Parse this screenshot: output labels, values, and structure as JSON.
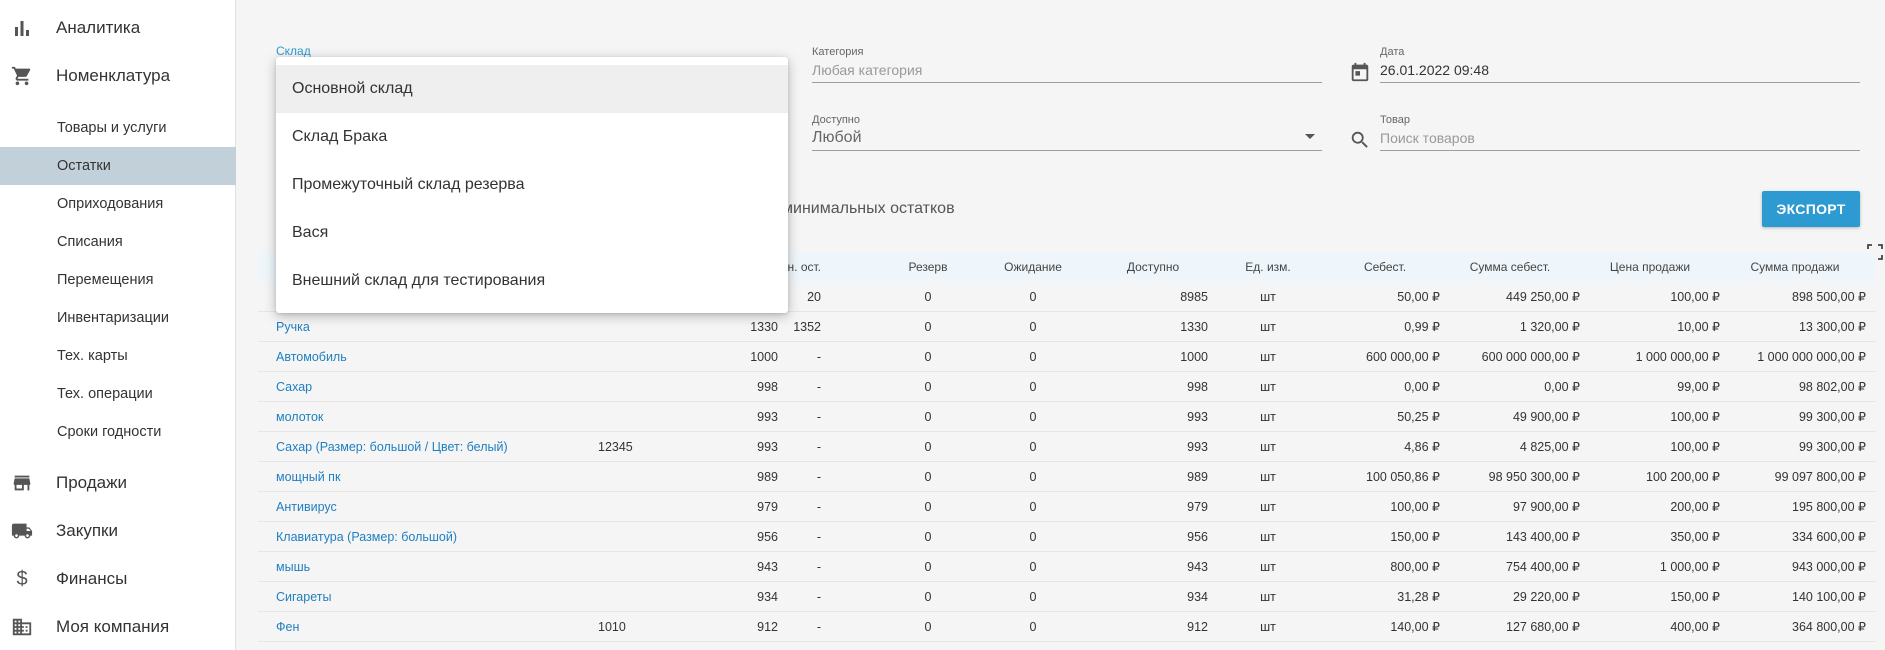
{
  "sidebar": {
    "sections": [
      {
        "label": "Аналитика",
        "icon": "bar-chart-icon"
      },
      {
        "label": "Номенклатура",
        "icon": "cart-icon"
      }
    ],
    "sub_items": [
      {
        "label": "Товары и услуги"
      },
      {
        "label": "Остатки",
        "active": true
      },
      {
        "label": "Оприходования"
      },
      {
        "label": "Списания"
      },
      {
        "label": "Перемещения"
      },
      {
        "label": "Инвентаризации"
      },
      {
        "label": "Тех. карты"
      },
      {
        "label": "Тех. операции"
      },
      {
        "label": "Сроки годности"
      }
    ],
    "bottom_sections": [
      {
        "label": "Продажи",
        "icon": "store-icon"
      },
      {
        "label": "Закупки",
        "icon": "truck-icon"
      },
      {
        "label": "Финансы",
        "icon": "dollar-icon"
      },
      {
        "label": "Моя компания",
        "icon": "building-icon"
      }
    ]
  },
  "filters": {
    "warehouse_label": "Склад",
    "category_label": "Категория",
    "category_placeholder": "Любая категория",
    "date_label": "Дата",
    "date_value": "26.01.2022 09:48",
    "available_label": "Доступно",
    "available_value": "Любой",
    "product_label": "Товар",
    "product_placeholder": "Поиск товаров"
  },
  "dropdown": {
    "options": [
      "Основной склад",
      "Склад Брака",
      "Промежуточный склад резерва",
      "Вася",
      "Внешний склад для тестирования"
    ]
  },
  "tabs": {
    "min_stock_text": "минимальных остатков"
  },
  "toolbar": {
    "export_label": "ЭКСПОРТ"
  },
  "table": {
    "headers": {
      "min": "Мин. ост.",
      "reserve": "Резерв",
      "waiting": "Ожидание",
      "available": "Доступно",
      "unit": "Ед. изм.",
      "cost": "Себест.",
      "cost_sum": "Сумма себест.",
      "price": "Цена продажи",
      "price_sum": "Сумма продажи"
    },
    "rows": [
      {
        "name": "",
        "code": "",
        "qty": "",
        "min": "20",
        "reserve": "0",
        "waiting": "0",
        "available": "8985",
        "unit": "шт",
        "cost": "50,00 ₽",
        "cost_sum": "449 250,00 ₽",
        "price": "100,00 ₽",
        "price_sum": "898 500,00 ₽"
      },
      {
        "name": "Ручка",
        "code": "",
        "qty": "1330",
        "min": "1352",
        "reserve": "0",
        "waiting": "0",
        "available": "1330",
        "unit": "шт",
        "cost": "0,99 ₽",
        "cost_sum": "1 320,00 ₽",
        "price": "10,00 ₽",
        "price_sum": "13 300,00 ₽"
      },
      {
        "name": "Автомобиль",
        "code": "",
        "qty": "1000",
        "min": "-",
        "reserve": "0",
        "waiting": "0",
        "available": "1000",
        "unit": "шт",
        "cost": "600 000,00 ₽",
        "cost_sum": "600 000 000,00 ₽",
        "price": "1 000 000,00 ₽",
        "price_sum": "1 000 000 000,00 ₽"
      },
      {
        "name": "Сахар",
        "code": "",
        "qty": "998",
        "min": "-",
        "reserve": "0",
        "waiting": "0",
        "available": "998",
        "unit": "шт",
        "cost": "0,00 ₽",
        "cost_sum": "0,00 ₽",
        "price": "99,00 ₽",
        "price_sum": "98 802,00 ₽"
      },
      {
        "name": "молоток",
        "code": "",
        "qty": "993",
        "min": "-",
        "reserve": "0",
        "waiting": "0",
        "available": "993",
        "unit": "шт",
        "cost": "50,25 ₽",
        "cost_sum": "49 900,00 ₽",
        "price": "100,00 ₽",
        "price_sum": "99 300,00 ₽"
      },
      {
        "name": "Сахар (Размер: большой / Цвет: белый)",
        "code": "12345",
        "qty": "993",
        "min": "-",
        "reserve": "0",
        "waiting": "0",
        "available": "993",
        "unit": "шт",
        "cost": "4,86 ₽",
        "cost_sum": "4 825,00 ₽",
        "price": "100,00 ₽",
        "price_sum": "99 300,00 ₽"
      },
      {
        "name": "мощный пк",
        "code": "",
        "qty": "989",
        "min": "-",
        "reserve": "0",
        "waiting": "0",
        "available": "989",
        "unit": "шт",
        "cost": "100 050,86 ₽",
        "cost_sum": "98 950 300,00 ₽",
        "price": "100 200,00 ₽",
        "price_sum": "99 097 800,00 ₽"
      },
      {
        "name": "Антивирус",
        "code": "",
        "qty": "979",
        "min": "-",
        "reserve": "0",
        "waiting": "0",
        "available": "979",
        "unit": "шт",
        "cost": "100,00 ₽",
        "cost_sum": "97 900,00 ₽",
        "price": "200,00 ₽",
        "price_sum": "195 800,00 ₽"
      },
      {
        "name": "Клавиатура (Размер: большой)",
        "code": "",
        "qty": "956",
        "min": "-",
        "reserve": "0",
        "waiting": "0",
        "available": "956",
        "unit": "шт",
        "cost": "150,00 ₽",
        "cost_sum": "143 400,00 ₽",
        "price": "350,00 ₽",
        "price_sum": "334 600,00 ₽"
      },
      {
        "name": "мышь",
        "code": "",
        "qty": "943",
        "min": "-",
        "reserve": "0",
        "waiting": "0",
        "available": "943",
        "unit": "шт",
        "cost": "800,00 ₽",
        "cost_sum": "754 400,00 ₽",
        "price": "1 000,00 ₽",
        "price_sum": "943 000,00 ₽"
      },
      {
        "name": "Сигареты",
        "code": "",
        "qty": "934",
        "min": "-",
        "reserve": "0",
        "waiting": "0",
        "available": "934",
        "unit": "шт",
        "cost": "31,28 ₽",
        "cost_sum": "29 220,00 ₽",
        "price": "150,00 ₽",
        "price_sum": "140 100,00 ₽"
      },
      {
        "name": "Фен",
        "code": "1010",
        "qty": "912",
        "min": "-",
        "reserve": "0",
        "waiting": "0",
        "available": "912",
        "unit": "шт",
        "cost": "140,00 ₽",
        "cost_sum": "127 680,00 ₽",
        "price": "400,00 ₽",
        "price_sum": "364 800,00 ₽"
      }
    ]
  }
}
